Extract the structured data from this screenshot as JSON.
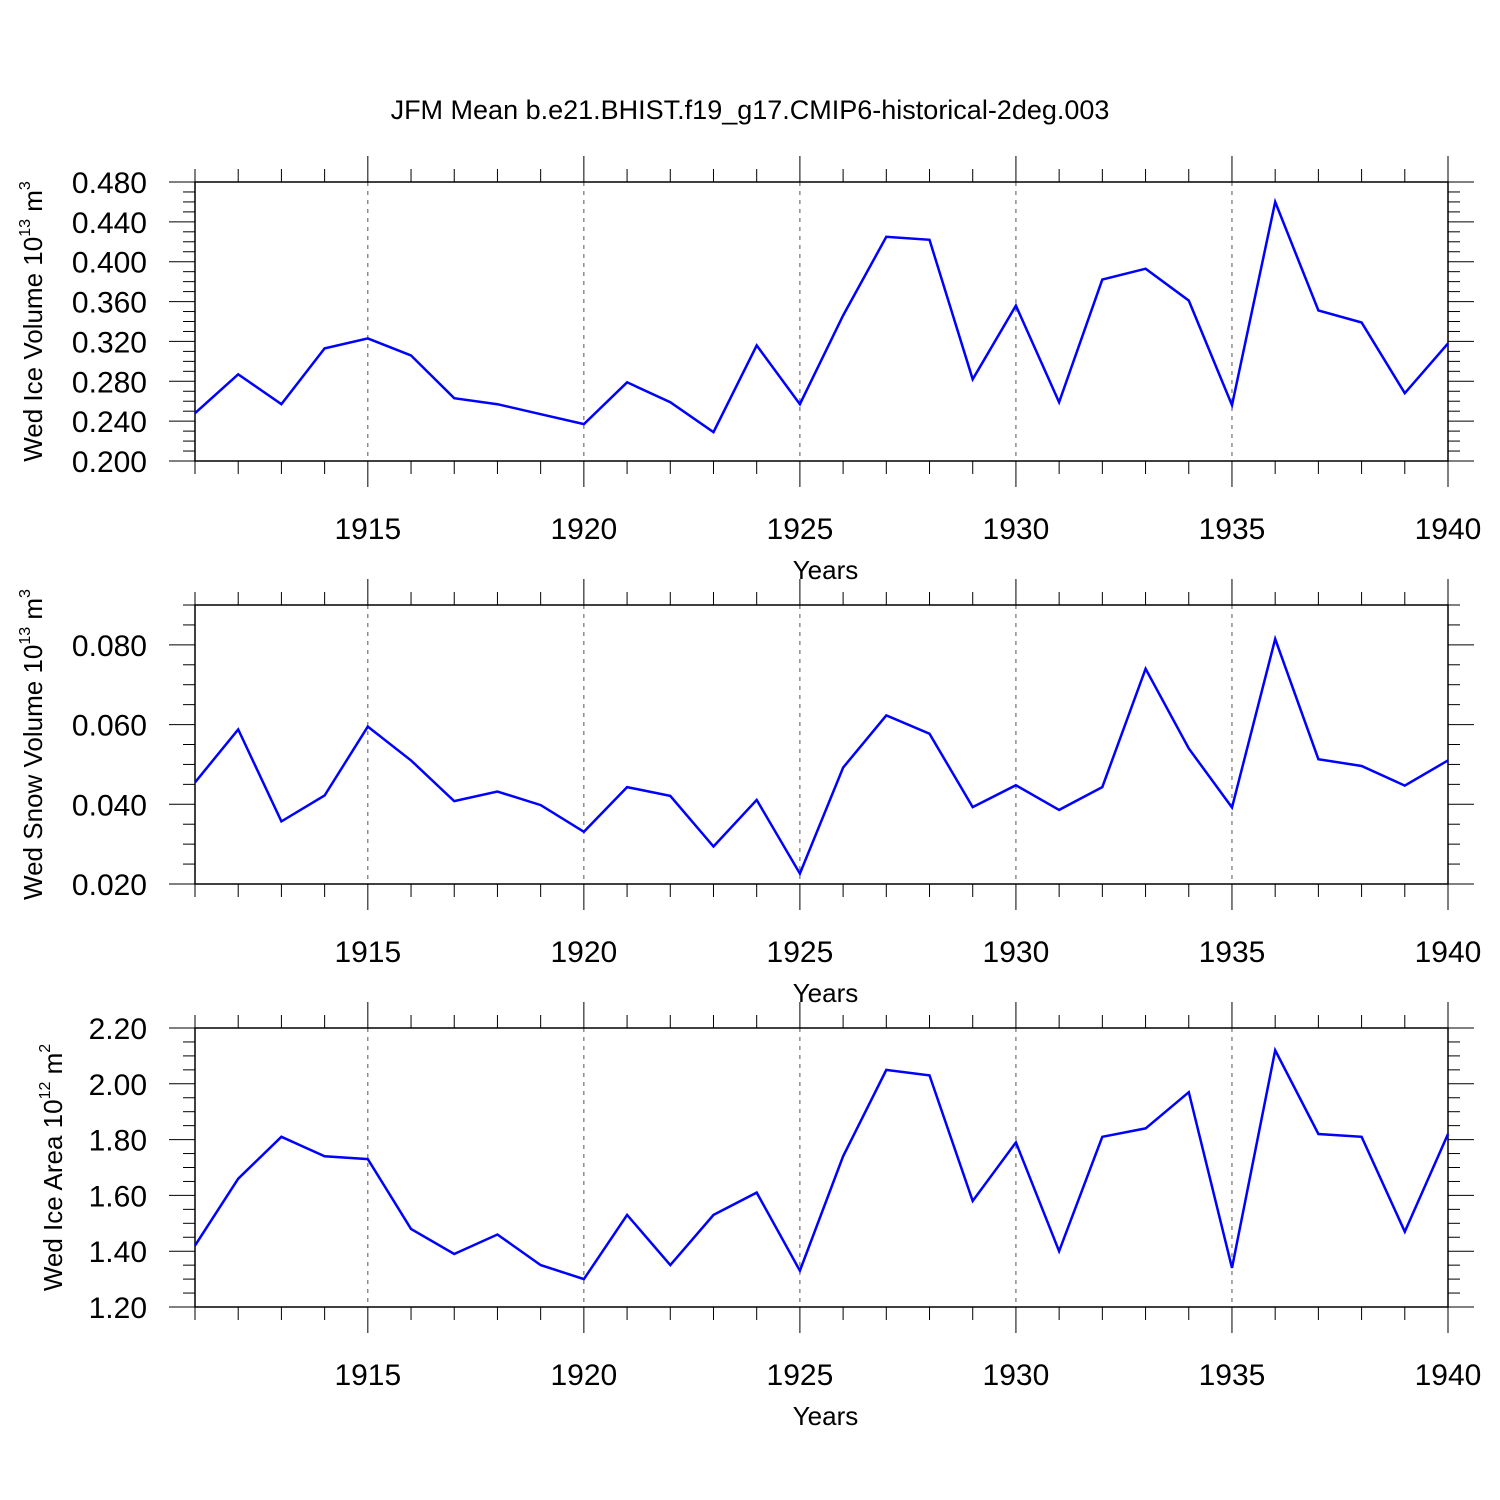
{
  "title": "JFM Mean b.e21.BHIST.f19_g17.CMIP6-historical-2deg.003",
  "colors": {
    "line": "#0000ff",
    "axis": "#000000",
    "grid": "#555555",
    "background": "#ffffff"
  },
  "chart_data": [
    {
      "type": "line",
      "ylabel": {
        "text": "Wed Ice Volume 10",
        "exponent": "13",
        "unit": "m",
        "unit_exponent": "3"
      },
      "xlabel": "Years",
      "xlim": [
        1911,
        1940
      ],
      "ylim": [
        0.2,
        0.48
      ],
      "yticks": [
        "0.200",
        "0.240",
        "0.280",
        "0.320",
        "0.360",
        "0.400",
        "0.440",
        "0.480"
      ],
      "ytick_values": [
        0.2,
        0.24,
        0.28,
        0.32,
        0.36,
        0.4,
        0.44,
        0.48
      ],
      "xticks": [
        "1915",
        "1920",
        "1925",
        "1930",
        "1935",
        "1940"
      ],
      "xtick_values": [
        1915,
        1920,
        1925,
        1930,
        1935,
        1940
      ],
      "grid": "vertical dashed at major x ticks",
      "x": [
        1911,
        1912,
        1913,
        1914,
        1915,
        1916,
        1917,
        1918,
        1919,
        1920,
        1921,
        1922,
        1923,
        1924,
        1925,
        1926,
        1927,
        1928,
        1929,
        1930,
        1931,
        1932,
        1933,
        1934,
        1935,
        1936,
        1937,
        1938,
        1939,
        1940
      ],
      "series": [
        {
          "name": "Wed Ice Volume",
          "values": [
            0.248,
            0.287,
            0.257,
            0.313,
            0.323,
            0.306,
            0.263,
            0.257,
            0.247,
            0.237,
            0.279,
            0.259,
            0.229,
            0.316,
            0.257,
            0.346,
            0.425,
            0.422,
            0.282,
            0.356,
            0.259,
            0.382,
            0.393,
            0.361,
            0.256,
            0.46,
            0.351,
            0.339,
            0.268,
            0.318
          ]
        }
      ]
    },
    {
      "type": "line",
      "ylabel": {
        "text": "Wed Snow Volume 10",
        "exponent": "13",
        "unit": "m",
        "unit_exponent": "3"
      },
      "xlabel": "Years",
      "xlim": [
        1911,
        1940
      ],
      "ylim": [
        0.02,
        0.09
      ],
      "yticks": [
        "0.020",
        "0.040",
        "0.060",
        "0.080"
      ],
      "ytick_values": [
        0.02,
        0.04,
        0.06,
        0.08
      ],
      "xticks": [
        "1915",
        "1920",
        "1925",
        "1930",
        "1935",
        "1940"
      ],
      "xtick_values": [
        1915,
        1920,
        1925,
        1930,
        1935,
        1940
      ],
      "grid": "vertical dashed at major x ticks",
      "x": [
        1911,
        1912,
        1913,
        1914,
        1915,
        1916,
        1917,
        1918,
        1919,
        1920,
        1921,
        1922,
        1923,
        1924,
        1925,
        1926,
        1927,
        1928,
        1929,
        1930,
        1931,
        1932,
        1933,
        1934,
        1935,
        1936,
        1937,
        1938,
        1939,
        1940
      ],
      "series": [
        {
          "name": "Wed Snow Volume",
          "values": [
            0.0455,
            0.0588,
            0.0357,
            0.0422,
            0.0595,
            0.051,
            0.0408,
            0.0432,
            0.0398,
            0.0331,
            0.0443,
            0.0421,
            0.0294,
            0.0411,
            0.0226,
            0.0492,
            0.0623,
            0.0577,
            0.0393,
            0.0448,
            0.0386,
            0.0443,
            0.074,
            0.054,
            0.0392,
            0.0815,
            0.0513,
            0.0496,
            0.0447,
            0.051
          ]
        }
      ]
    },
    {
      "type": "line",
      "ylabel": {
        "text": "Wed Ice Area 10",
        "exponent": "12",
        "unit": "m",
        "unit_exponent": "2"
      },
      "xlabel": "Years",
      "xlim": [
        1911,
        1940
      ],
      "ylim": [
        1.2,
        2.2
      ],
      "yticks": [
        "1.20",
        "1.40",
        "1.60",
        "1.80",
        "2.00",
        "2.20"
      ],
      "ytick_values": [
        1.2,
        1.4,
        1.6,
        1.8,
        2.0,
        2.2
      ],
      "xticks": [
        "1915",
        "1920",
        "1925",
        "1930",
        "1935",
        "1940"
      ],
      "xtick_values": [
        1915,
        1920,
        1925,
        1930,
        1935,
        1940
      ],
      "grid": "vertical dashed at major x ticks",
      "x": [
        1911,
        1912,
        1913,
        1914,
        1915,
        1916,
        1917,
        1918,
        1919,
        1920,
        1921,
        1922,
        1923,
        1924,
        1925,
        1926,
        1927,
        1928,
        1929,
        1930,
        1931,
        1932,
        1933,
        1934,
        1935,
        1936,
        1937,
        1938,
        1939,
        1940
      ],
      "series": [
        {
          "name": "Wed Ice Area",
          "values": [
            1.42,
            1.66,
            1.81,
            1.74,
            1.73,
            1.48,
            1.39,
            1.46,
            1.35,
            1.3,
            1.53,
            1.35,
            1.53,
            1.61,
            1.33,
            1.74,
            2.05,
            2.03,
            1.58,
            1.79,
            1.4,
            1.81,
            1.84,
            1.97,
            1.34,
            2.12,
            1.82,
            1.81,
            1.47,
            1.82
          ]
        }
      ]
    }
  ]
}
